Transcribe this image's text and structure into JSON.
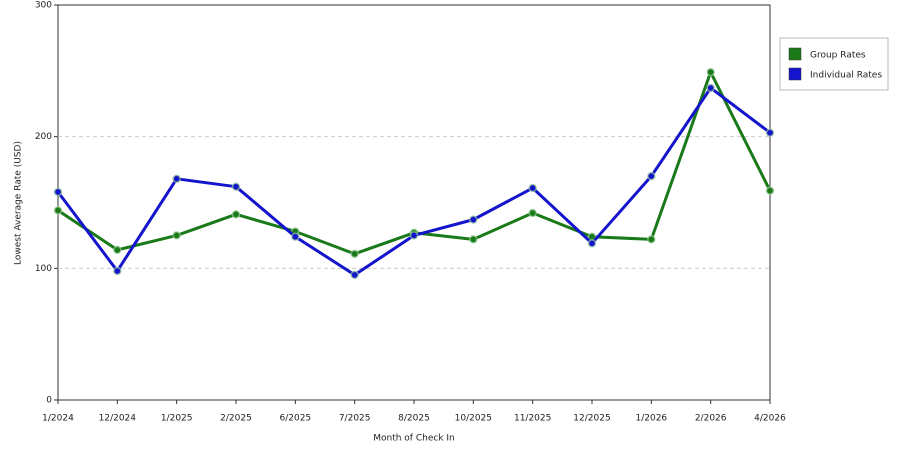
{
  "chart_data": {
    "type": "line",
    "x_label": "Month of Check In",
    "y_label": "Lowest Average Rate (USD)",
    "categories": [
      "1/2024",
      "12/2024",
      "1/2025",
      "2/2025",
      "6/2025",
      "7/2025",
      "8/2025",
      "10/2025",
      "11/2025",
      "12/2025",
      "1/2026",
      "2/2026",
      "4/2026"
    ],
    "series": [
      {
        "name": "Group Rates",
        "color": "#1a7a1a",
        "values": [
          144,
          114,
          125,
          141,
          128,
          111,
          127,
          122,
          142,
          124,
          122,
          249,
          159
        ]
      },
      {
        "name": "Individual Rates",
        "color": "#1414cc",
        "values": [
          158,
          98,
          168,
          162,
          124,
          95,
          125,
          137,
          161,
          119,
          170,
          237,
          203
        ]
      }
    ],
    "ylim": [
      0,
      300
    ],
    "yticks": [
      0,
      100,
      200,
      300
    ],
    "grid": true,
    "legend": "right"
  }
}
